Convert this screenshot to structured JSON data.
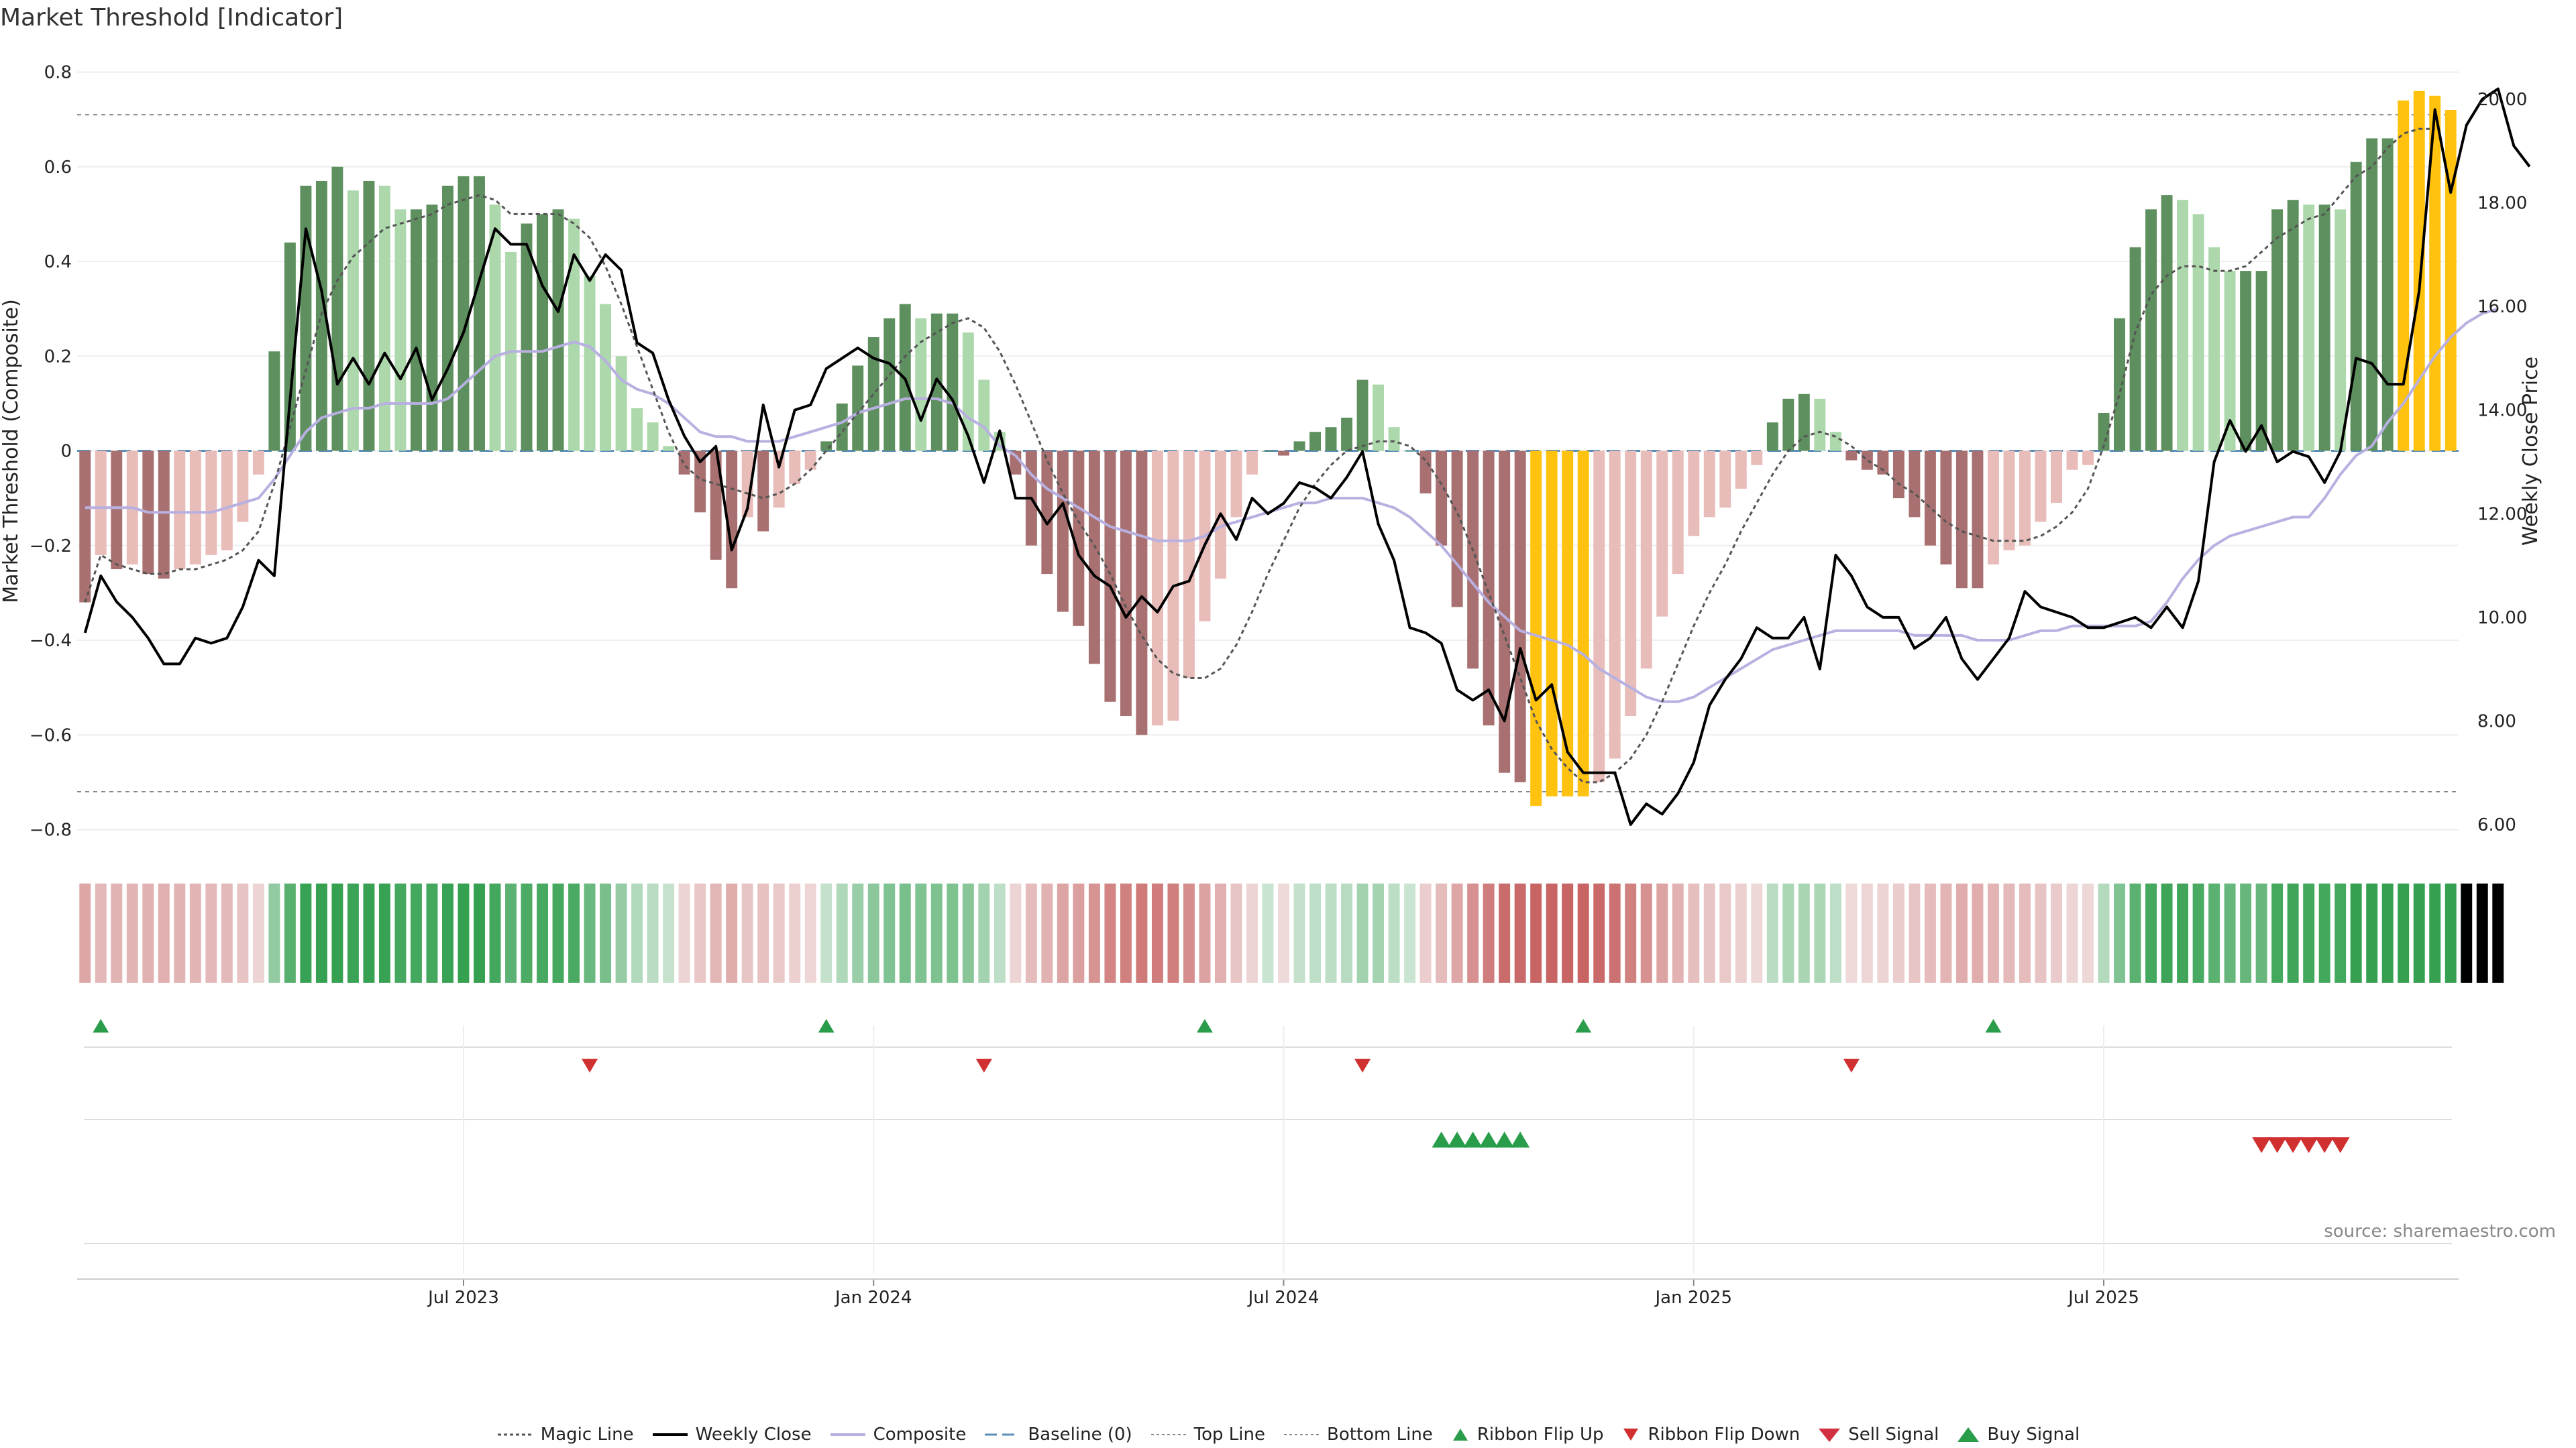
{
  "title": "Market Threshold [Indicator]",
  "source": "source: sharemaestro.com",
  "legend": {
    "magic_line": "Magic Line",
    "weekly_close": "Weekly Close",
    "composite": "Composite",
    "baseline": "Baseline (0)",
    "top_line": "Top Line",
    "bottom_line": "Bottom Line",
    "ribbon_flip_up": "Ribbon Flip Up",
    "ribbon_flip_down": "Ribbon Flip Down",
    "sell_signal": "Sell Signal",
    "buy_signal": "Buy Signal"
  },
  "colors": {
    "pos_dark": "#5e8f5e",
    "pos_light": "#acd8ac",
    "neg_dark": "#a87070",
    "neg_light": "#e8bcb8",
    "extreme": "#ffc20e",
    "close": "#000000",
    "composite": "#b8b0e0",
    "magic": "#555555",
    "baseline": "#5b8fb9",
    "up_marker": "#2a9d4a",
    "down_marker": "#d03030"
  },
  "chart_data": {
    "type": "bar",
    "ylabel": "Market Threshold (Composite)",
    "ylabel_right": "Weekly Close Price",
    "ylim": [
      -0.82,
      0.8
    ],
    "ylim_right": [
      5.6,
      20.6
    ],
    "y_ticks": [
      "0.8",
      "0.6",
      "0.4",
      "0.2",
      "0",
      "−0.2",
      "−0.4",
      "−0.6",
      "−0.8"
    ],
    "y_ticks_right": [
      "20.00",
      "18.00",
      "16.00",
      "14.00",
      "12.00",
      "10.00",
      "8.00",
      "6.00"
    ],
    "x_ticks": [
      "Jul 2023",
      "Jan 2024",
      "Jul 2024",
      "Jan 2025",
      "Jul 2025"
    ],
    "top_line": 0.71,
    "bottom_line": -0.72,
    "start_date": "2023-01-16",
    "week_step": 1,
    "composite_bars": [
      -0.32,
      -0.22,
      -0.25,
      -0.24,
      -0.26,
      -0.27,
      -0.25,
      -0.24,
      -0.22,
      -0.21,
      -0.15,
      -0.05,
      0.21,
      0.44,
      0.56,
      0.57,
      0.6,
      0.55,
      0.57,
      0.56,
      0.51,
      0.51,
      0.52,
      0.56,
      0.58,
      0.58,
      0.52,
      0.42,
      0.48,
      0.5,
      0.51,
      0.49,
      0.37,
      0.31,
      0.2,
      0.09,
      0.06,
      0.01,
      -0.05,
      -0.13,
      -0.23,
      -0.29,
      -0.14,
      -0.17,
      -0.12,
      -0.07,
      -0.04,
      0.02,
      0.1,
      0.18,
      0.24,
      0.28,
      0.31,
      0.28,
      0.29,
      0.29,
      0.25,
      0.15,
      0.04,
      -0.05,
      -0.2,
      -0.26,
      -0.34,
      -0.37,
      -0.45,
      -0.53,
      -0.56,
      -0.6,
      -0.58,
      -0.57,
      -0.48,
      -0.36,
      -0.27,
      -0.14,
      -0.05,
      0.0,
      -0.01,
      0.02,
      0.04,
      0.05,
      0.07,
      0.15,
      0.14,
      0.05,
      0.0,
      -0.09,
      -0.2,
      -0.33,
      -0.46,
      -0.58,
      -0.68,
      -0.7,
      -0.75,
      -0.73,
      -0.73,
      -0.73,
      -0.7,
      -0.65,
      -0.56,
      -0.46,
      -0.35,
      -0.26,
      -0.18,
      -0.14,
      -0.12,
      -0.08,
      -0.03,
      0.06,
      0.11,
      0.12,
      0.11,
      0.04,
      -0.02,
      -0.04,
      -0.05,
      -0.1,
      -0.14,
      -0.2,
      -0.24,
      -0.29,
      -0.29,
      -0.24,
      -0.21,
      -0.2,
      -0.15,
      -0.11,
      -0.04,
      -0.03,
      0.08,
      0.28,
      0.43,
      0.51,
      0.54,
      0.53,
      0.5,
      0.43,
      0.38,
      0.38,
      0.38,
      0.51,
      0.53,
      0.52,
      0.52,
      0.51,
      0.61,
      0.66,
      0.66,
      0.74,
      0.76,
      0.75,
      0.72
    ],
    "magic_line": [
      -0.32,
      -0.22,
      -0.24,
      -0.25,
      -0.26,
      -0.26,
      -0.25,
      -0.25,
      -0.24,
      -0.23,
      -0.21,
      -0.17,
      -0.07,
      0.05,
      0.17,
      0.29,
      0.36,
      0.41,
      0.44,
      0.47,
      0.48,
      0.49,
      0.5,
      0.52,
      0.53,
      0.54,
      0.53,
      0.5,
      0.5,
      0.5,
      0.5,
      0.48,
      0.45,
      0.39,
      0.31,
      0.22,
      0.13,
      0.04,
      -0.03,
      -0.06,
      -0.07,
      -0.08,
      -0.09,
      -0.1,
      -0.09,
      -0.07,
      -0.04,
      0.0,
      0.04,
      0.08,
      0.12,
      0.16,
      0.2,
      0.23,
      0.25,
      0.27,
      0.28,
      0.26,
      0.21,
      0.14,
      0.06,
      -0.02,
      -0.09,
      -0.15,
      -0.2,
      -0.26,
      -0.33,
      -0.39,
      -0.44,
      -0.47,
      -0.48,
      -0.48,
      -0.46,
      -0.41,
      -0.34,
      -0.26,
      -0.19,
      -0.12,
      -0.07,
      -0.03,
      0.0,
      0.01,
      0.02,
      0.02,
      0.01,
      -0.02,
      -0.07,
      -0.13,
      -0.21,
      -0.3,
      -0.39,
      -0.48,
      -0.57,
      -0.63,
      -0.67,
      -0.7,
      -0.7,
      -0.68,
      -0.65,
      -0.6,
      -0.53,
      -0.45,
      -0.37,
      -0.3,
      -0.24,
      -0.17,
      -0.11,
      -0.05,
      0.0,
      0.03,
      0.04,
      0.03,
      0.01,
      -0.02,
      -0.04,
      -0.07,
      -0.09,
      -0.12,
      -0.15,
      -0.17,
      -0.18,
      -0.19,
      -0.19,
      -0.19,
      -0.18,
      -0.16,
      -0.13,
      -0.08,
      0.01,
      0.12,
      0.25,
      0.33,
      0.37,
      0.39,
      0.39,
      0.38,
      0.38,
      0.39,
      0.42,
      0.45,
      0.47,
      0.49,
      0.5,
      0.54,
      0.58,
      0.6,
      0.64,
      0.67,
      0.68,
      0.68
    ],
    "weekly_close": [
      9.7,
      10.8,
      10.3,
      10.0,
      9.6,
      9.1,
      9.1,
      9.6,
      9.5,
      9.6,
      10.2,
      11.1,
      10.8,
      14.2,
      17.5,
      16.3,
      14.5,
      15.0,
      14.5,
      15.1,
      14.6,
      15.2,
      14.2,
      14.8,
      15.5,
      16.5,
      17.5,
      17.2,
      17.2,
      16.4,
      15.9,
      17.0,
      16.5,
      17.0,
      16.7,
      15.3,
      15.1,
      14.2,
      13.5,
      13.0,
      13.3,
      11.3,
      12.1,
      14.1,
      12.9,
      14.0,
      14.1,
      14.8,
      15.0,
      15.2,
      15.0,
      14.9,
      14.6,
      13.8,
      14.6,
      14.2,
      13.5,
      12.6,
      13.6,
      12.3,
      12.3,
      11.8,
      12.2,
      11.2,
      10.8,
      10.6,
      10.0,
      10.4,
      10.1,
      10.6,
      10.7,
      11.4,
      12.0,
      11.5,
      12.3,
      12.0,
      12.2,
      12.6,
      12.5,
      12.3,
      12.7,
      13.2,
      11.8,
      11.1,
      9.8,
      9.7,
      9.5,
      8.6,
      8.4,
      8.6,
      8.0,
      9.4,
      8.4,
      8.7,
      7.4,
      7.0,
      7.0,
      7.0,
      6.0,
      6.4,
      6.2,
      6.6,
      7.2,
      8.3,
      8.8,
      9.2,
      9.8,
      9.6,
      9.6,
      10.0,
      9.0,
      11.2,
      10.8,
      10.2,
      10.0,
      10.0,
      9.4,
      9.6,
      10.0,
      9.2,
      8.8,
      9.2,
      9.6,
      10.5,
      10.2,
      10.1,
      10.0,
      9.8,
      9.8,
      9.9,
      10.0,
      9.8,
      10.2,
      9.8,
      10.7,
      13.0,
      13.8,
      13.2,
      13.7,
      13.0,
      13.2,
      13.1,
      12.6,
      13.2,
      15.0,
      14.9,
      14.5,
      14.5,
      16.3,
      19.8,
      18.2,
      19.5,
      20.0,
      20.2,
      19.1,
      18.7
    ],
    "composite_line": [
      -0.12,
      -0.12,
      -0.12,
      -0.12,
      -0.13,
      -0.13,
      -0.13,
      -0.13,
      -0.13,
      -0.12,
      -0.11,
      -0.1,
      -0.06,
      -0.01,
      0.04,
      0.07,
      0.08,
      0.09,
      0.09,
      0.1,
      0.1,
      0.1,
      0.1,
      0.11,
      0.14,
      0.17,
      0.2,
      0.21,
      0.21,
      0.21,
      0.22,
      0.23,
      0.22,
      0.19,
      0.15,
      0.13,
      0.12,
      0.1,
      0.07,
      0.04,
      0.03,
      0.03,
      0.02,
      0.02,
      0.02,
      0.03,
      0.04,
      0.05,
      0.06,
      0.08,
      0.09,
      0.1,
      0.11,
      0.11,
      0.11,
      0.1,
      0.07,
      0.05,
      0.01,
      -0.01,
      -0.05,
      -0.08,
      -0.1,
      -0.12,
      -0.14,
      -0.16,
      -0.17,
      -0.18,
      -0.19,
      -0.19,
      -0.19,
      -0.18,
      -0.16,
      -0.15,
      -0.14,
      -0.13,
      -0.12,
      -0.11,
      -0.11,
      -0.1,
      -0.1,
      -0.1,
      -0.11,
      -0.12,
      -0.14,
      -0.17,
      -0.2,
      -0.24,
      -0.28,
      -0.32,
      -0.35,
      -0.38,
      -0.39,
      -0.4,
      -0.41,
      -0.43,
      -0.46,
      -0.48,
      -0.5,
      -0.52,
      -0.53,
      -0.53,
      -0.52,
      -0.5,
      -0.48,
      -0.46,
      -0.44,
      -0.42,
      -0.41,
      -0.4,
      -0.39,
      -0.38,
      -0.38,
      -0.38,
      -0.38,
      -0.38,
      -0.39,
      -0.39,
      -0.39,
      -0.39,
      -0.4,
      -0.4,
      -0.4,
      -0.39,
      -0.38,
      -0.38,
      -0.37,
      -0.37,
      -0.37,
      -0.37,
      -0.37,
      -0.36,
      -0.32,
      -0.27,
      -0.23,
      -0.2,
      -0.18,
      -0.17,
      -0.16,
      -0.15,
      -0.14,
      -0.14,
      -0.1,
      -0.05,
      -0.01,
      0.01,
      0.06,
      0.1,
      0.15,
      0.2,
      0.24,
      0.27,
      0.29,
      0.3
    ],
    "ribbon_flip_up_weeks": [
      1,
      47,
      71,
      95,
      121
    ],
    "ribbon_flip_down_weeks": [
      32,
      57,
      81,
      112
    ],
    "buy_signal_weeks": [
      86,
      87,
      88,
      89,
      90,
      91
    ],
    "sell_signal_weeks": [
      138,
      139,
      140,
      141,
      142,
      143
    ]
  }
}
